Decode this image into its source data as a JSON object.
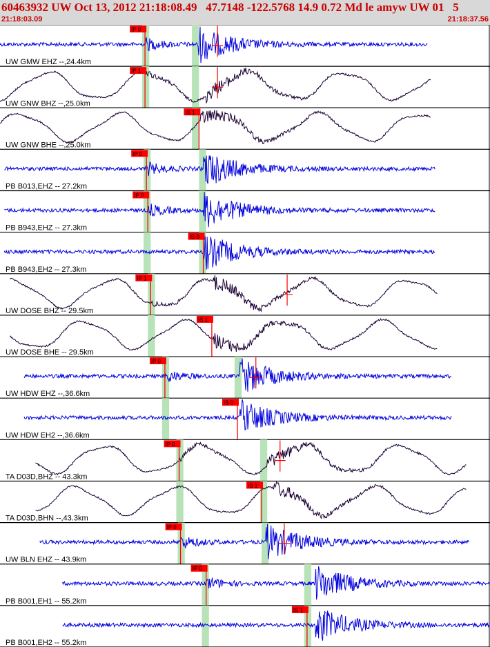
{
  "header": {
    "title": "60463932 UW Oct 13, 2012 21:18:08.49   47.7148 -122.5768 14.9 0.72 Md le amyw UW 01   5",
    "time_start": "21:18:03.09",
    "time_end": "21:18:37.56"
  },
  "colors": {
    "header_text": "#cc0000",
    "header_bg": "#d8d8d8",
    "trace_short_period": "#0000dd",
    "trace_broadband": "#1a0033",
    "pick_box": "#ff0000",
    "pick_window": "#b8e3b8"
  },
  "time_window_s": [
    0,
    34.47
  ],
  "traces": [
    {
      "label": "UW GMW EHZ --,24.4km",
      "style": "sp",
      "start_s": 0.0,
      "end_s": 30.1,
      "pick": {
        "label": "IP 0",
        "time_s": 10.2
      },
      "window_s": [
        10.0,
        10.5
      ],
      "window2_s": [
        13.5,
        14.0
      ],
      "arrival_s": 13.9,
      "coda_s": 15.3
    },
    {
      "label": "UW GNW BHZ --,25.0km",
      "style": "bb",
      "start_s": 0.0,
      "end_s": 30.3,
      "pick": {
        "label": "IP 1",
        "time_s": 10.2
      },
      "window_s": [
        10.0,
        10.5
      ],
      "window2_s": [
        13.5,
        14.0
      ],
      "arrival_s": 14.5,
      "coda_s": 15.3
    },
    {
      "label": "UW GNW BHE --,25.0km",
      "style": "bb",
      "start_s": 0.0,
      "end_s": 30.3,
      "pick": {
        "label": "IS 1",
        "time_s": 14.0
      },
      "window_s": [
        13.5,
        14.0
      ],
      "arrival_s": 14.1
    },
    {
      "label": "PB B013,EHZ -- 27.2km",
      "style": "sp",
      "start_s": 0.3,
      "end_s": 30.6,
      "pick": {
        "label": "IP 0",
        "time_s": 10.3
      },
      "window_s": [
        10.1,
        10.6
      ],
      "window2_s": [
        14.0,
        14.5
      ],
      "arrival_s": 14.3
    },
    {
      "label": "PB B943,EHZ -- 27.3km",
      "style": "sp",
      "start_s": 0.3,
      "end_s": 30.6,
      "pick": {
        "label": "IP 0",
        "time_s": 10.4
      },
      "window_s": [
        10.1,
        10.6
      ],
      "window2_s": [
        14.0,
        14.5
      ],
      "arrival_s": 14.3
    },
    {
      "label": "PB B943,EH2 -- 27.3km",
      "style": "sp",
      "start_s": 0.3,
      "end_s": 30.6,
      "pick": {
        "label": "IS 0",
        "time_s": 14.3
      },
      "window_s": [
        10.1,
        10.6
      ],
      "window2_s": [
        14.0,
        14.5
      ],
      "arrival_s": 14.3
    },
    {
      "label": "UW DOSE BHZ -- 29.5km",
      "style": "bb",
      "start_s": 0.7,
      "end_s": 30.8,
      "pick": {
        "label": "IP 1",
        "time_s": 10.6
      },
      "window_s": [
        10.4,
        10.9
      ],
      "arrival_s": 15.0,
      "coda_s": 20.2
    },
    {
      "label": "UW DOSE BHE -- 29.5km",
      "style": "bb",
      "start_s": 0.7,
      "end_s": 30.8,
      "pick": {
        "label": "IS 1",
        "time_s": 14.9
      },
      "window_s": [
        10.4,
        10.9
      ],
      "arrival_s": 15.0
    },
    {
      "label": "UW HDW EHZ --,36.6km",
      "style": "sp",
      "start_s": 1.7,
      "end_s": 31.8,
      "pick": {
        "label": "IP 0",
        "time_s": 11.6
      },
      "window_s": [
        11.4,
        11.9
      ],
      "window2_s": [
        16.5,
        17.0
      ],
      "arrival_s": 16.8,
      "coda_s": 18.0
    },
    {
      "label": "UW HDW EH2 --,36.6km",
      "style": "sp",
      "start_s": 1.7,
      "end_s": 31.8,
      "pick": {
        "label": "IS 0",
        "time_s": 16.7
      },
      "window_s": [
        11.4,
        11.9
      ],
      "arrival_s": 16.8
    },
    {
      "label": "TA D03D,BHZ -- 43.3km",
      "style": "bb",
      "start_s": 2.5,
      "end_s": 32.8,
      "pick": {
        "label": "IP 0",
        "time_s": 12.6
      },
      "window_s": [
        12.4,
        12.9
      ],
      "window2_s": [
        18.3,
        18.8
      ],
      "arrival_s": 18.8,
      "coda_s": 19.7
    },
    {
      "label": "TA D03D,BHN --,43.3km",
      "style": "bb",
      "start_s": 2.5,
      "end_s": 32.8,
      "pick": {
        "label": "IS 1",
        "time_s": 18.4
      },
      "window_s": [
        12.4,
        12.9
      ],
      "window2_s": [
        18.3,
        18.8
      ],
      "arrival_s": 19.2
    },
    {
      "label": "UW BLN EHZ -- 43.9km",
      "style": "sp",
      "start_s": 2.8,
      "end_s": 33.0,
      "pick": {
        "label": "IP 0",
        "time_s": 12.7
      },
      "window_s": [
        12.5,
        13.0
      ],
      "window2_s": [
        18.4,
        18.9
      ],
      "arrival_s": 18.7,
      "coda_s": 20.0
    },
    {
      "label": "PB B001,EH1 -- 55.2km",
      "style": "sp",
      "start_s": 4.4,
      "end_s": 34.5,
      "pick": {
        "label": "IP 0",
        "time_s": 14.5
      },
      "window_s": [
        14.2,
        14.7
      ],
      "window2_s": [
        21.4,
        21.9
      ],
      "arrival_s": 22.2
    },
    {
      "label": "PB B001,EH2 -- 55.2km",
      "style": "sp",
      "start_s": 4.4,
      "end_s": 34.5,
      "pick": {
        "label": "IS 1",
        "time_s": 21.6
      },
      "window_s": [
        14.2,
        14.7
      ],
      "window2_s": [
        21.4,
        21.9
      ],
      "arrival_s": 22.2
    }
  ]
}
